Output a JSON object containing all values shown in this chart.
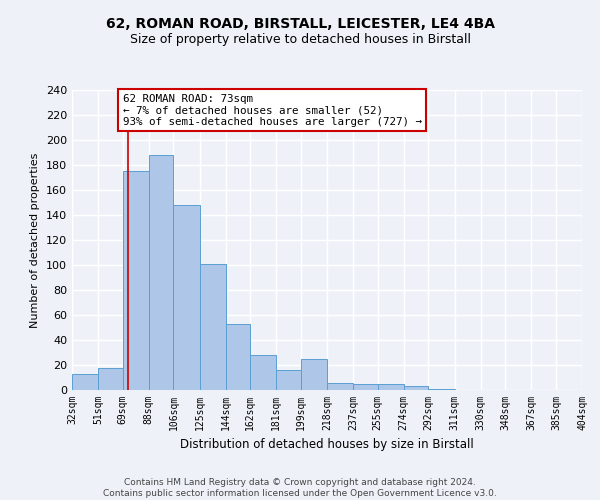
{
  "title_line1": "62, ROMAN ROAD, BIRSTALL, LEICESTER, LE4 4BA",
  "title_line2": "Size of property relative to detached houses in Birstall",
  "xlabel": "Distribution of detached houses by size in Birstall",
  "ylabel": "Number of detached properties",
  "bin_edges": [
    32,
    51,
    69,
    88,
    106,
    125,
    144,
    162,
    181,
    199,
    218,
    237,
    255,
    274,
    292,
    311,
    330,
    348,
    367,
    385,
    404
  ],
  "bin_labels": [
    "32sqm",
    "51sqm",
    "69sqm",
    "88sqm",
    "106sqm",
    "125sqm",
    "144sqm",
    "162sqm",
    "181sqm",
    "199sqm",
    "218sqm",
    "237sqm",
    "255sqm",
    "274sqm",
    "292sqm",
    "311sqm",
    "330sqm",
    "348sqm",
    "367sqm",
    "385sqm",
    "404sqm"
  ],
  "counts": [
    13,
    18,
    175,
    188,
    148,
    101,
    53,
    28,
    16,
    25,
    6,
    5,
    5,
    3,
    1,
    0,
    0,
    0,
    0,
    0
  ],
  "bar_color": "#aec6e8",
  "bar_edge_color": "#5a9fd4",
  "vline_x": 73,
  "vline_color": "#cc0000",
  "annotation_title": "62 ROMAN ROAD: 73sqm",
  "annotation_line1": "← 7% of detached houses are smaller (52)",
  "annotation_line2": "93% of semi-detached houses are larger (727) →",
  "annotation_box_color": "white",
  "annotation_box_edge": "#cc0000",
  "ylim": [
    0,
    240
  ],
  "yticks": [
    0,
    20,
    40,
    60,
    80,
    100,
    120,
    140,
    160,
    180,
    200,
    220,
    240
  ],
  "footer_line1": "Contains HM Land Registry data © Crown copyright and database right 2024.",
  "footer_line2": "Contains public sector information licensed under the Open Government Licence v3.0.",
  "bg_color": "#eef2f8"
}
